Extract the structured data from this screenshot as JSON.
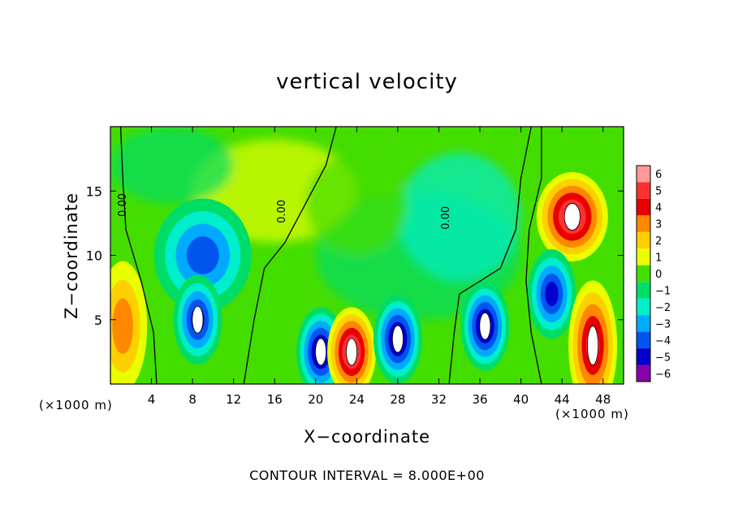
{
  "chart_data": {
    "type": "heatmap",
    "title": "vertical velocity",
    "xlabel": "X−coordinate",
    "ylabel": "Z−coordinate",
    "x_unit_left": "(×1000 m)",
    "x_unit_right": "(×1000 m)",
    "xlim": [
      0,
      50
    ],
    "ylim": [
      0,
      20
    ],
    "x_ticks": [
      4,
      8,
      12,
      16,
      20,
      24,
      28,
      32,
      36,
      40,
      44,
      48
    ],
    "y_ticks": [
      5,
      10,
      15
    ],
    "colorbar": {
      "levels": [
        6,
        5,
        4,
        3,
        2,
        1,
        0,
        -1,
        -2,
        -3,
        -4,
        -5,
        -6
      ],
      "labels": [
        "6",
        "5",
        "4",
        "3",
        "2",
        "1",
        "0",
        "−1",
        "−2",
        "−3",
        "−4",
        "−5",
        "−6"
      ],
      "colors": [
        "#ff9a9a",
        "#ff3030",
        "#e80000",
        "#ff8800",
        "#ffd000",
        "#e8ff00",
        "#44dd00",
        "#00dd66",
        "#00eecc",
        "#00aaff",
        "#0055ee",
        "#0000cc",
        "#8800aa"
      ]
    },
    "features": [
      {
        "x": 1.2,
        "z": 4.5,
        "w": 3,
        "kind": "updraft"
      },
      {
        "x": 9,
        "z": 10,
        "w": -3.5,
        "kind": "downdraft"
      },
      {
        "x": 8.5,
        "z": 5,
        "w": -5,
        "kind": "downdraft"
      },
      {
        "x": 20.5,
        "z": 2.5,
        "w": -5.5,
        "kind": "downdraft"
      },
      {
        "x": 23.5,
        "z": 2.5,
        "w": 6,
        "kind": "updraft"
      },
      {
        "x": 28,
        "z": 3.5,
        "w": -5.5,
        "kind": "downdraft"
      },
      {
        "x": 36.5,
        "z": 4.5,
        "w": -6,
        "kind": "downdraft"
      },
      {
        "x": 45,
        "z": 13,
        "w": 5.5,
        "kind": "updraft"
      },
      {
        "x": 43,
        "z": 7,
        "w": -4.5,
        "kind": "downdraft"
      },
      {
        "x": 47,
        "z": 3,
        "w": 5,
        "kind": "updraft"
      }
    ],
    "contour_labels": [
      "0.00",
      "0.00",
      "0.00"
    ],
    "contour_interval": "CONTOUR INTERVAL = 8.000E+00"
  }
}
